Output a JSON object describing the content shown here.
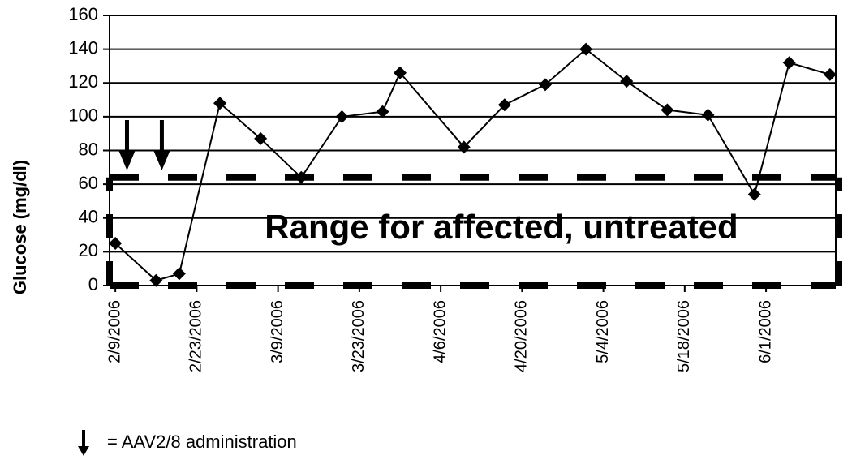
{
  "chart_data": {
    "type": "line",
    "y_label": "Glucose (mg/dl)",
    "x": [
      "2006-02-09",
      "2006-02-16",
      "2006-02-20",
      "2006-02-27",
      "2006-03-06",
      "2006-03-13",
      "2006-03-20",
      "2006-03-27",
      "2006-03-30",
      "2006-04-10",
      "2006-04-17",
      "2006-04-24",
      "2006-05-01",
      "2006-05-08",
      "2006-05-15",
      "2006-05-22",
      "2006-05-30",
      "2006-06-05",
      "2006-06-12"
    ],
    "values": [
      25,
      3,
      7,
      108,
      87,
      64,
      100,
      103,
      126,
      82,
      107,
      119,
      140,
      121,
      104,
      101,
      54,
      132,
      125
    ],
    "color": "#000000",
    "xlim": [
      "2006-02-08",
      "2006-06-13"
    ],
    "xticks": [
      {
        "value": "2006-02-09",
        "label": "2/9/2006"
      },
      {
        "value": "2006-02-23",
        "label": "2/23/2006"
      },
      {
        "value": "2006-03-09",
        "label": "3/9/2006"
      },
      {
        "value": "2006-03-23",
        "label": "3/23/2006"
      },
      {
        "value": "2006-04-06",
        "label": "4/6/2006"
      },
      {
        "value": "2006-04-20",
        "label": "4/20/2006"
      },
      {
        "value": "2006-05-04",
        "label": "5/4/2006"
      },
      {
        "value": "2006-05-18",
        "label": "5/18/2006"
      },
      {
        "value": "2006-06-01",
        "label": "6/1/2006"
      }
    ],
    "ylim": [
      0,
      160
    ],
    "yticks": [
      0,
      20,
      40,
      60,
      80,
      100,
      120,
      140,
      160
    ],
    "grid": true,
    "range_band": {
      "range": [
        0,
        64
      ],
      "label": "Range for affected, untreated"
    },
    "administrations": [
      "2006-02-11",
      "2006-02-17"
    ],
    "legend_text": "= AAV2/8 administration"
  }
}
